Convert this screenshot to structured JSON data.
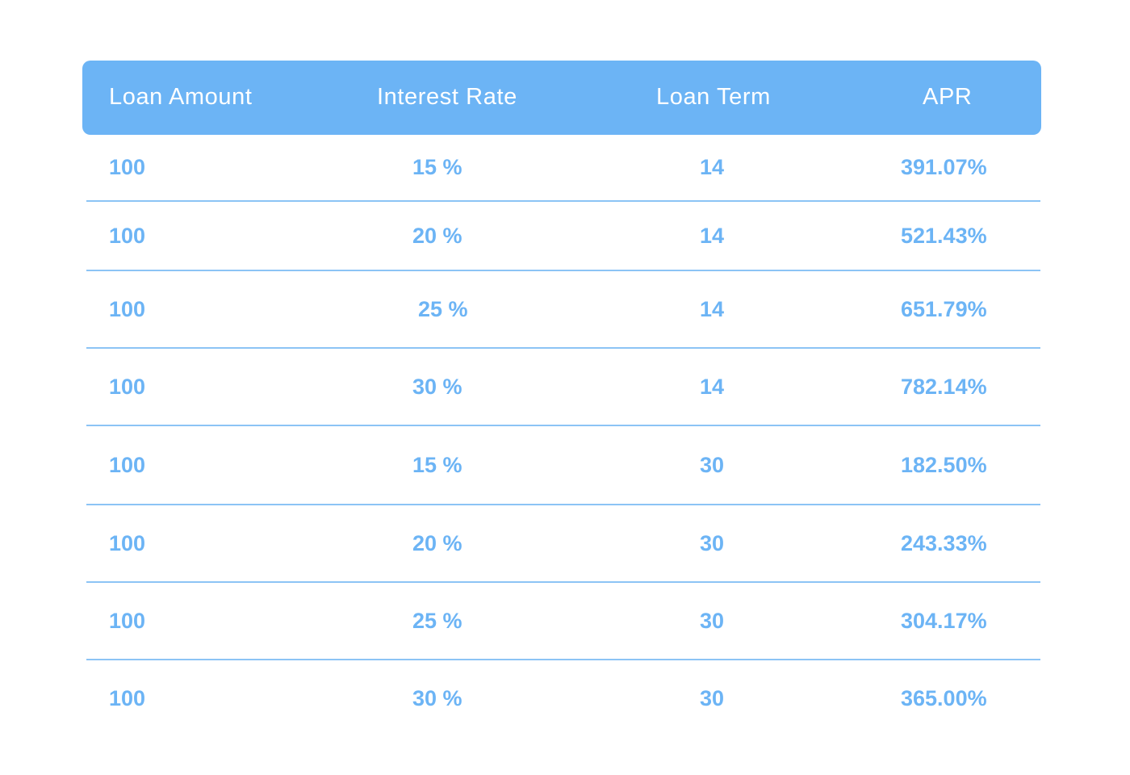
{
  "table": {
    "headers": [
      "Loan Amount",
      "Interest Rate",
      "Loan Term",
      "APR"
    ],
    "rows": [
      [
        "100",
        "15 %",
        "14",
        "391.07%"
      ],
      [
        "100",
        "20 %",
        "14",
        "521.43%"
      ],
      [
        "100",
        "25 %",
        "14",
        "651.79%"
      ],
      [
        "100",
        "30 %",
        "14",
        "782.14%"
      ],
      [
        "100",
        "15 %",
        "30",
        "182.50%"
      ],
      [
        "100",
        "20 %",
        "30",
        "243.33%"
      ],
      [
        "100",
        "25 %",
        "30",
        "304.17%"
      ],
      [
        "100",
        "30 %",
        "30",
        "365.00%"
      ]
    ]
  },
  "colors": {
    "accent": "#6cb4f5",
    "header_text": "#ffffff",
    "divider": "#8cc4f5"
  }
}
